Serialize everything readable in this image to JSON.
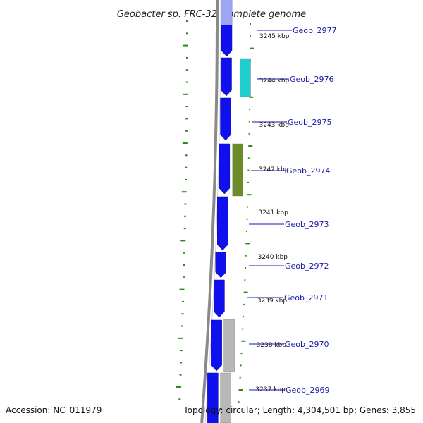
{
  "title": "Geobacter sp. FRC-32, complete genome",
  "accession_label": "Accession: NC_011979",
  "topology_label": "Topology: circular; Length: 4,304,501 bp; Genes: 3,855",
  "colors": {
    "forward_gene": "#1010ee",
    "forward_gene_faded": "#9da7f5",
    "cyan_gene": "#1fcfcf",
    "olive_gene": "#6b8c26",
    "grey_gene": "#b8b8b8",
    "backbone": "#8a8a8a",
    "tick": "#2b8a1c",
    "label": "#1a1aa8"
  },
  "ticks": [
    {
      "kbp": "3245 kbp"
    },
    {
      "kbp": "3244 kbp"
    },
    {
      "kbp": "3243 kbp"
    },
    {
      "kbp": "3242 kbp"
    },
    {
      "kbp": "3241 kbp"
    },
    {
      "kbp": "3240 kbp"
    },
    {
      "kbp": "3239 kbp"
    },
    {
      "kbp": "3238 kbp"
    },
    {
      "kbp": "3237 kbp"
    }
  ],
  "genes": [
    {
      "name": "Geob_2977"
    },
    {
      "name": "Geob_2976"
    },
    {
      "name": "Geob_2975"
    },
    {
      "name": "Geob_2974"
    },
    {
      "name": "Geob_2973"
    },
    {
      "name": "Geob_2972"
    },
    {
      "name": "Geob_2971"
    },
    {
      "name": "Geob_2970"
    },
    {
      "name": "Geob_2969"
    }
  ]
}
